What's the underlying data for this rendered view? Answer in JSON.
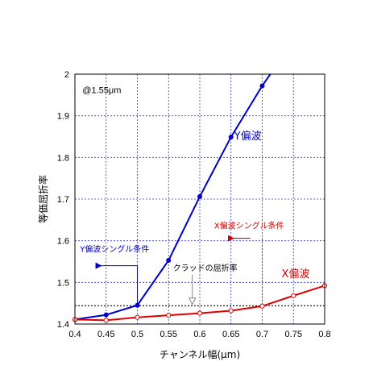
{
  "chart_data": {
    "type": "line",
    "xlabel": "チャンネル幅(μm)",
    "ylabel": "等価屈折率",
    "xlim": [
      0.4,
      0.8
    ],
    "ylim": [
      1.4,
      2.0
    ],
    "x_ticks": [
      "0.4",
      "0.45",
      "0.5",
      "0.55",
      "0.6",
      "0.65",
      "0.7",
      "0.75",
      "0.8"
    ],
    "y_ticks": [
      "1.4",
      "1.5",
      "1.6",
      "1.7",
      "1.8",
      "1.9",
      "2"
    ],
    "grid": true,
    "wavelength_note": "@1.55μm",
    "series": [
      {
        "name": "Y偏波",
        "color": "#0000cc",
        "marker": "filled-circle",
        "x": [
          0.4,
          0.45,
          0.5,
          0.55,
          0.6,
          0.65,
          0.7
        ],
        "y": [
          1.411,
          1.422,
          1.445,
          1.553,
          1.706,
          1.849,
          1.972
        ],
        "extends_to": [
          0.713,
          2.0
        ]
      },
      {
        "name": "X偏波",
        "color": "#dd0000",
        "marker": "open-circle",
        "x": [
          0.4,
          0.45,
          0.5,
          0.55,
          0.6,
          0.65,
          0.7,
          0.75,
          0.8
        ],
        "y": [
          1.411,
          1.409,
          1.416,
          1.421,
          1.426,
          1.432,
          1.443,
          1.468,
          1.492
        ]
      }
    ],
    "reference_line": {
      "label": "クラッドの屈折率",
      "y": 1.444,
      "style": "dotted",
      "color": "#000000"
    },
    "annotations": {
      "y_single": {
        "text": "Y偏波シングル条件",
        "color": "#0000cc",
        "cutoff_x": 0.5
      },
      "x_single": {
        "text": "X偏波シングル条件",
        "color": "#dd0000",
        "cutoff_x": 0.7
      }
    }
  }
}
